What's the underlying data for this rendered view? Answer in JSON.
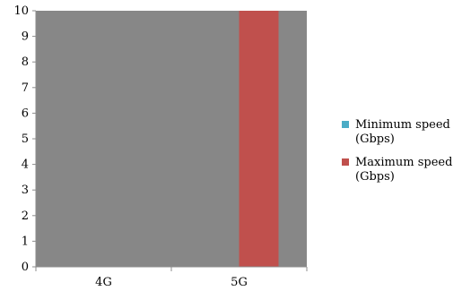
{
  "chart_data": {
    "type": "bar",
    "title": "",
    "xlabel": "",
    "ylabel": "",
    "categories": [
      "4G",
      "5G"
    ],
    "ylim": [
      0,
      10
    ],
    "yticks": [
      0,
      1,
      2,
      3,
      4,
      5,
      6,
      7,
      8,
      9,
      10
    ],
    "grid": false,
    "legend_position": "right",
    "plot_background": "#878787",
    "series": [
      {
        "name": "Minimum speed (Gbps)",
        "legend_lines": [
          "Minimum speed",
          "(Gbps)"
        ],
        "color": "#4bacc6",
        "values": [
          0,
          0
        ]
      },
      {
        "name": "Maximum speed (Gbps)",
        "legend_lines": [
          "Maximum speed",
          "(Gbps)"
        ],
        "color": "#c0504d",
        "values": [
          0,
          10
        ]
      }
    ]
  }
}
